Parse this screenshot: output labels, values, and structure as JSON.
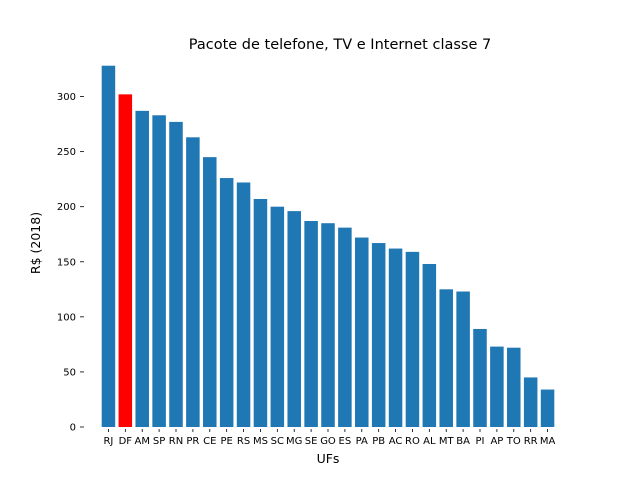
{
  "chart_data": {
    "type": "bar",
    "title": "Pacote de telefone, TV e Internet classe 7",
    "xlabel": "UFs",
    "ylabel": "R$ (2018)",
    "ylim": [
      0,
      335
    ],
    "yticks": [
      0,
      50,
      100,
      150,
      200,
      250,
      300
    ],
    "grid": false,
    "categories": [
      "RJ",
      "DF",
      "AM",
      "SP",
      "RN",
      "PR",
      "CE",
      "PE",
      "RS",
      "MS",
      "SC",
      "MG",
      "SE",
      "GO",
      "ES",
      "PA",
      "PB",
      "AC",
      "RO",
      "AL",
      "MT",
      "BA",
      "PI",
      "AP",
      "TO",
      "RR",
      "MA"
    ],
    "values": [
      328,
      302,
      287,
      283,
      277,
      263,
      245,
      226,
      222,
      207,
      200,
      196,
      187,
      185,
      181,
      172,
      167,
      162,
      159,
      148,
      125,
      123,
      89,
      73,
      72,
      45,
      34
    ],
    "bar_color": "#1f77b4",
    "highlight": {
      "category": "DF",
      "color": "#ff0000"
    }
  }
}
